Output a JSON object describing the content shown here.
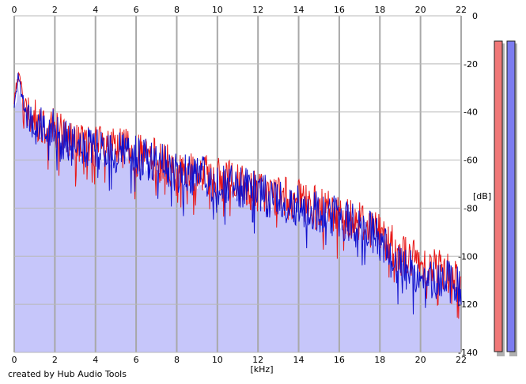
{
  "credit": "created by Hub Audio Tools",
  "chart_data": {
    "type": "line",
    "title": "",
    "xlabel": "[kHz]",
    "ylabel": "[dB]",
    "xlim": [
      0,
      22
    ],
    "ylim": [
      -140,
      0
    ],
    "x_ticks": [
      0,
      2,
      4,
      6,
      8,
      10,
      12,
      14,
      16,
      18,
      20,
      22
    ],
    "y_ticks": [
      0,
      -20,
      -40,
      -60,
      -80,
      -100,
      -120,
      -140
    ],
    "x_tick_labels": [
      "0",
      "2",
      "4",
      "6",
      "8",
      "10",
      "12",
      "14",
      "16",
      "18",
      "20",
      "22"
    ],
    "y_tick_labels": [
      "0",
      "-20",
      "-40",
      "-60",
      "-80",
      "-100",
      "-120",
      "-140"
    ],
    "grid": true,
    "legend": "none",
    "series": [
      {
        "color": "#e81818",
        "x": [
          0.0,
          0.2,
          0.5,
          1.0,
          1.5,
          2.0,
          2.5,
          3.0,
          4.0,
          5.0,
          5.5,
          6.0,
          7.0,
          8.0,
          9.0,
          10.0,
          11.0,
          12.0,
          13.0,
          14.0,
          15.0,
          16.0,
          17.0,
          18.0,
          18.5,
          19.0,
          20.0,
          21.0,
          22.0
        ],
        "y": [
          -36,
          -24,
          -36,
          -43,
          -45,
          -46,
          -50,
          -53,
          -54,
          -56,
          -54,
          -58,
          -60,
          -64,
          -66,
          -68,
          -70,
          -73,
          -75,
          -77,
          -80,
          -83,
          -85,
          -90,
          -95,
          -99,
          -103,
          -105,
          -110
        ]
      },
      {
        "color": "#1010cc",
        "x": [
          0.0,
          0.2,
          0.5,
          1.0,
          1.5,
          2.0,
          2.5,
          3.0,
          4.0,
          5.0,
          5.5,
          6.0,
          7.0,
          8.0,
          9.0,
          10.0,
          11.0,
          12.0,
          13.0,
          14.0,
          15.0,
          16.0,
          17.0,
          18.0,
          18.5,
          19.0,
          20.0,
          21.0,
          22.0
        ],
        "y": [
          -38,
          -25,
          -38,
          -45,
          -46,
          -47,
          -52,
          -55,
          -56,
          -57,
          -55,
          -59,
          -61,
          -65,
          -66,
          -70,
          -71,
          -74,
          -76,
          -79,
          -81,
          -84,
          -87,
          -93,
          -100,
          -104,
          -108,
          -109,
          -113
        ]
      }
    ],
    "fill_color": "#c6c6fa",
    "meters": [
      {
        "color": "#f07878"
      },
      {
        "color": "#7c7cf0"
      }
    ]
  }
}
